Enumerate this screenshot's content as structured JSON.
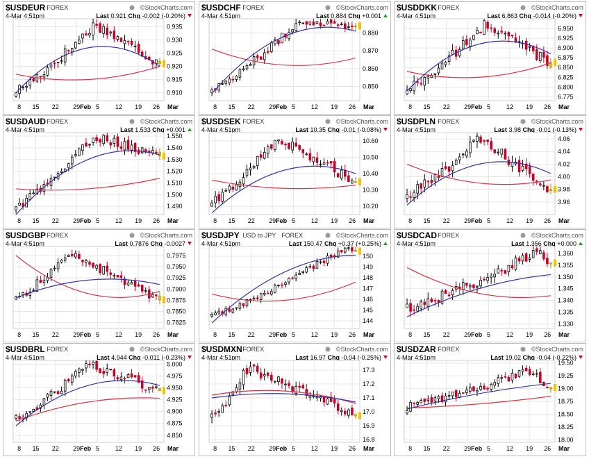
{
  "x_labels": [
    "8",
    "15",
    "22",
    "29",
    "Feb",
    "5",
    "12",
    "19",
    "26",
    "Mar"
  ],
  "source": "StockCharts.com",
  "date": "4-Mar 4:51pm",
  "colors": {
    "up": "#000000",
    "down": "#cc0022",
    "ma_short": "#3333aa",
    "ma_long": "#dd3344",
    "last": "#f2c200",
    "grid": "#e6e6e6",
    "up_arrow": "#2a9d2a",
    "down_arrow": "#cc0044"
  },
  "chart_data": [
    {
      "type": "candlestick",
      "symbol": "$USDEUR",
      "exchange": "FOREX",
      "last_label": "Last",
      "last": "0.921",
      "chg_label": "Chg",
      "chg": "-0.002 (-0.20%)",
      "direction": "down",
      "ylim": [
        0.907,
        0.938
      ],
      "yticks": [
        "0.935",
        "0.930",
        "0.925",
        "0.920",
        "0.915",
        "0.910"
      ],
      "start": 0.911,
      "end": 0.921,
      "peak_at": 0.55,
      "peak": 0.936,
      "vol": 0.0025,
      "ma_short": [
        0.91,
        0.927,
        0.92
      ],
      "ma_long": [
        0.917,
        0.915,
        0.92
      ]
    },
    {
      "type": "candlestick",
      "symbol": "$USDCHF",
      "exchange": "FOREX",
      "last_label": "Last",
      "last": "0.884",
      "chg_label": "Chg",
      "chg": "+0.001",
      "direction": "up",
      "ylim": [
        0.842,
        0.888
      ],
      "yticks": [
        "0.880",
        "0.870",
        "0.860",
        "0.850"
      ],
      "start": 0.849,
      "end": 0.884,
      "peak_at": 0.62,
      "peak": 0.887,
      "vol": 0.003,
      "ma_short": [
        0.846,
        0.878,
        0.881
      ],
      "ma_long": [
        0.871,
        0.862,
        0.866
      ]
    },
    {
      "type": "candlestick",
      "symbol": "$USDDKK",
      "exchange": "FOREX",
      "last_label": "Last",
      "last": "6.863",
      "chg_label": "Chg",
      "chg": "-0.014 (-0.20%)",
      "direction": "down",
      "ylim": [
        6.765,
        6.975
      ],
      "yticks": [
        "6.950",
        "6.925",
        "6.900",
        "6.875",
        "6.850",
        "6.825",
        "6.800",
        "6.775"
      ],
      "start": 6.795,
      "end": 6.863,
      "peak_at": 0.55,
      "peak": 6.962,
      "vol": 0.018,
      "ma_short": [
        6.79,
        6.91,
        6.885
      ],
      "ma_long": [
        6.84,
        6.825,
        6.862
      ]
    },
    {
      "type": "candlestick",
      "symbol": "$USDAUD",
      "exchange": "FOREX",
      "last_label": "Last",
      "last": "1.533",
      "chg_label": "Chg",
      "chg": "+0.001",
      "direction": "up",
      "ylim": [
        1.483,
        1.553
      ],
      "yticks": [
        "1.550",
        "1.540",
        "1.530",
        "1.520",
        "1.510",
        "1.500",
        "1.490"
      ],
      "start": 1.49,
      "end": 1.533,
      "peak_at": 0.55,
      "peak": 1.55,
      "vol": 0.005,
      "ma_short": [
        1.483,
        1.53,
        1.534
      ],
      "ma_long": [
        1.505,
        1.505,
        1.514
      ]
    },
    {
      "type": "candlestick",
      "symbol": "$USDSEK",
      "exchange": "FOREX",
      "last_label": "Last",
      "last": "10.35",
      "chg_label": "Chg",
      "chg": "-0.01 (-0.08%)",
      "direction": "down",
      "ylim": [
        10.15,
        10.65
      ],
      "yticks": [
        "10.60",
        "10.50",
        "10.40",
        "10.30",
        "10.20"
      ],
      "start": 10.22,
      "end": 10.35,
      "peak_at": 0.45,
      "peak": 10.62,
      "vol": 0.04,
      "ma_short": [
        10.16,
        10.42,
        10.4
      ],
      "ma_long": [
        10.36,
        10.31,
        10.33
      ]
    },
    {
      "type": "candlestick",
      "symbol": "$USDPLN",
      "exchange": "FOREX",
      "last_label": "Last",
      "last": "3.98",
      "chg_label": "Chg",
      "chg": "-0.01 (-0.13%)",
      "direction": "down",
      "ylim": [
        3.94,
        4.07
      ],
      "yticks": [
        "4.06",
        "4.04",
        "4.02",
        "4.00",
        "3.98",
        "3.96"
      ],
      "start": 3.97,
      "end": 3.98,
      "peak_at": 0.5,
      "peak": 4.06,
      "vol": 0.012,
      "ma_short": [
        3.955,
        4.02,
        4.005
      ],
      "ma_long": [
        4.02,
        3.99,
        3.995
      ]
    },
    {
      "type": "candlestick",
      "symbol": "$USDGBP",
      "exchange": "FOREX",
      "last_label": "Last",
      "last": "0.7876",
      "chg_label": "Chg",
      "chg": "-0.0027",
      "direction": "down",
      "ylim": [
        0.7812,
        0.7995
      ],
      "yticks": [
        "0.7975",
        "0.7950",
        "0.7925",
        "0.7900",
        "0.7875",
        "0.7850",
        "0.7825"
      ],
      "start": 0.788,
      "end": 0.7876,
      "peak_at": 0.38,
      "peak": 0.798,
      "vol": 0.0012,
      "ma_short": [
        0.788,
        0.792,
        0.791
      ],
      "ma_long": [
        0.7975,
        0.789,
        0.7895
      ]
    },
    {
      "type": "candlestick",
      "symbol": "$USDJPY",
      "exchange": "FOREX",
      "subtitle": "USD to JPY",
      "last_label": "Last",
      "last": "150.47",
      "chg_label": "Chg",
      "chg": "+0.37 (+0.25%)",
      "direction": "up",
      "ylim": [
        143.3,
        150.9
      ],
      "yticks": [
        "150",
        "149",
        "148",
        "147",
        "146",
        "145",
        "144"
      ],
      "start": 144.5,
      "end": 150.47,
      "peak_at": 0.9,
      "peak": 150.6,
      "vol": 0.35,
      "ma_short": [
        143.8,
        148.5,
        150.1
      ],
      "ma_long": [
        146.5,
        145.9,
        147.6
      ]
    },
    {
      "type": "candlestick",
      "symbol": "$USDCAD",
      "exchange": "FOREX",
      "last_label": "Last",
      "last": "1.356",
      "chg_label": "Chg",
      "chg": "+0.000",
      "direction": "up",
      "ylim": [
        1.328,
        1.363
      ],
      "yticks": [
        "1.360",
        "1.355",
        "1.350",
        "1.345",
        "1.340",
        "1.335",
        "1.330"
      ],
      "start": 1.337,
      "end": 1.356,
      "peak_at": 0.92,
      "peak": 1.361,
      "vol": 0.003,
      "ma_short": [
        1.333,
        1.345,
        1.351
      ],
      "ma_long": [
        1.354,
        1.343,
        1.342
      ]
    },
    {
      "type": "candlestick",
      "symbol": "$USDBRL",
      "exchange": "FOREX",
      "last_label": "Last",
      "last": "4.944",
      "chg_label": "Chg",
      "chg": "-0.011 (-0.23%)",
      "direction": "down",
      "ylim": [
        4.835,
        5.008
      ],
      "yticks": [
        "5.000",
        "4.975",
        "4.950",
        "4.925",
        "4.900",
        "4.875",
        "4.850"
      ],
      "start": 4.885,
      "end": 4.944,
      "peak_at": 0.5,
      "peak": 5.0,
      "vol": 0.012,
      "ma_short": [
        4.87,
        4.955,
        4.955
      ],
      "ma_long": [
        4.88,
        4.92,
        4.928
      ]
    },
    {
      "type": "candlestick",
      "symbol": "$USDMXN",
      "exchange": "FOREX",
      "last_label": "Last",
      "last": "16.97",
      "chg_label": "Chg",
      "chg": "-0.04 (-0.25%)",
      "direction": "down",
      "ylim": [
        16.78,
        17.37
      ],
      "yticks": [
        "17.3",
        "17.2",
        "17.1",
        "17.0",
        "16.9",
        "16.8"
      ],
      "start": 16.95,
      "end": 16.97,
      "peak_at": 0.25,
      "peak": 17.32,
      "vol": 0.05,
      "ma_short": [
        17.1,
        17.13,
        17.07
      ],
      "ma_long": [
        17.12,
        17.15,
        17.06
      ]
    },
    {
      "type": "candlestick",
      "symbol": "$USDZAR",
      "exchange": "FOREX",
      "last_label": "Last",
      "last": "19.02",
      "chg_label": "Chg",
      "chg": "-0.04 (-0.22%)",
      "direction": "down",
      "ylim": [
        17.95,
        19.55
      ],
      "yticks": [
        "19.50",
        "19.25",
        "19.00",
        "18.75",
        "18.50",
        "18.25",
        "18.00"
      ],
      "start": 18.65,
      "end": 19.02,
      "peak_at": 0.85,
      "peak": 19.35,
      "vol": 0.1,
      "ma_short": [
        18.6,
        18.9,
        19.1
      ],
      "ma_long": [
        18.62,
        18.7,
        18.85
      ]
    }
  ]
}
